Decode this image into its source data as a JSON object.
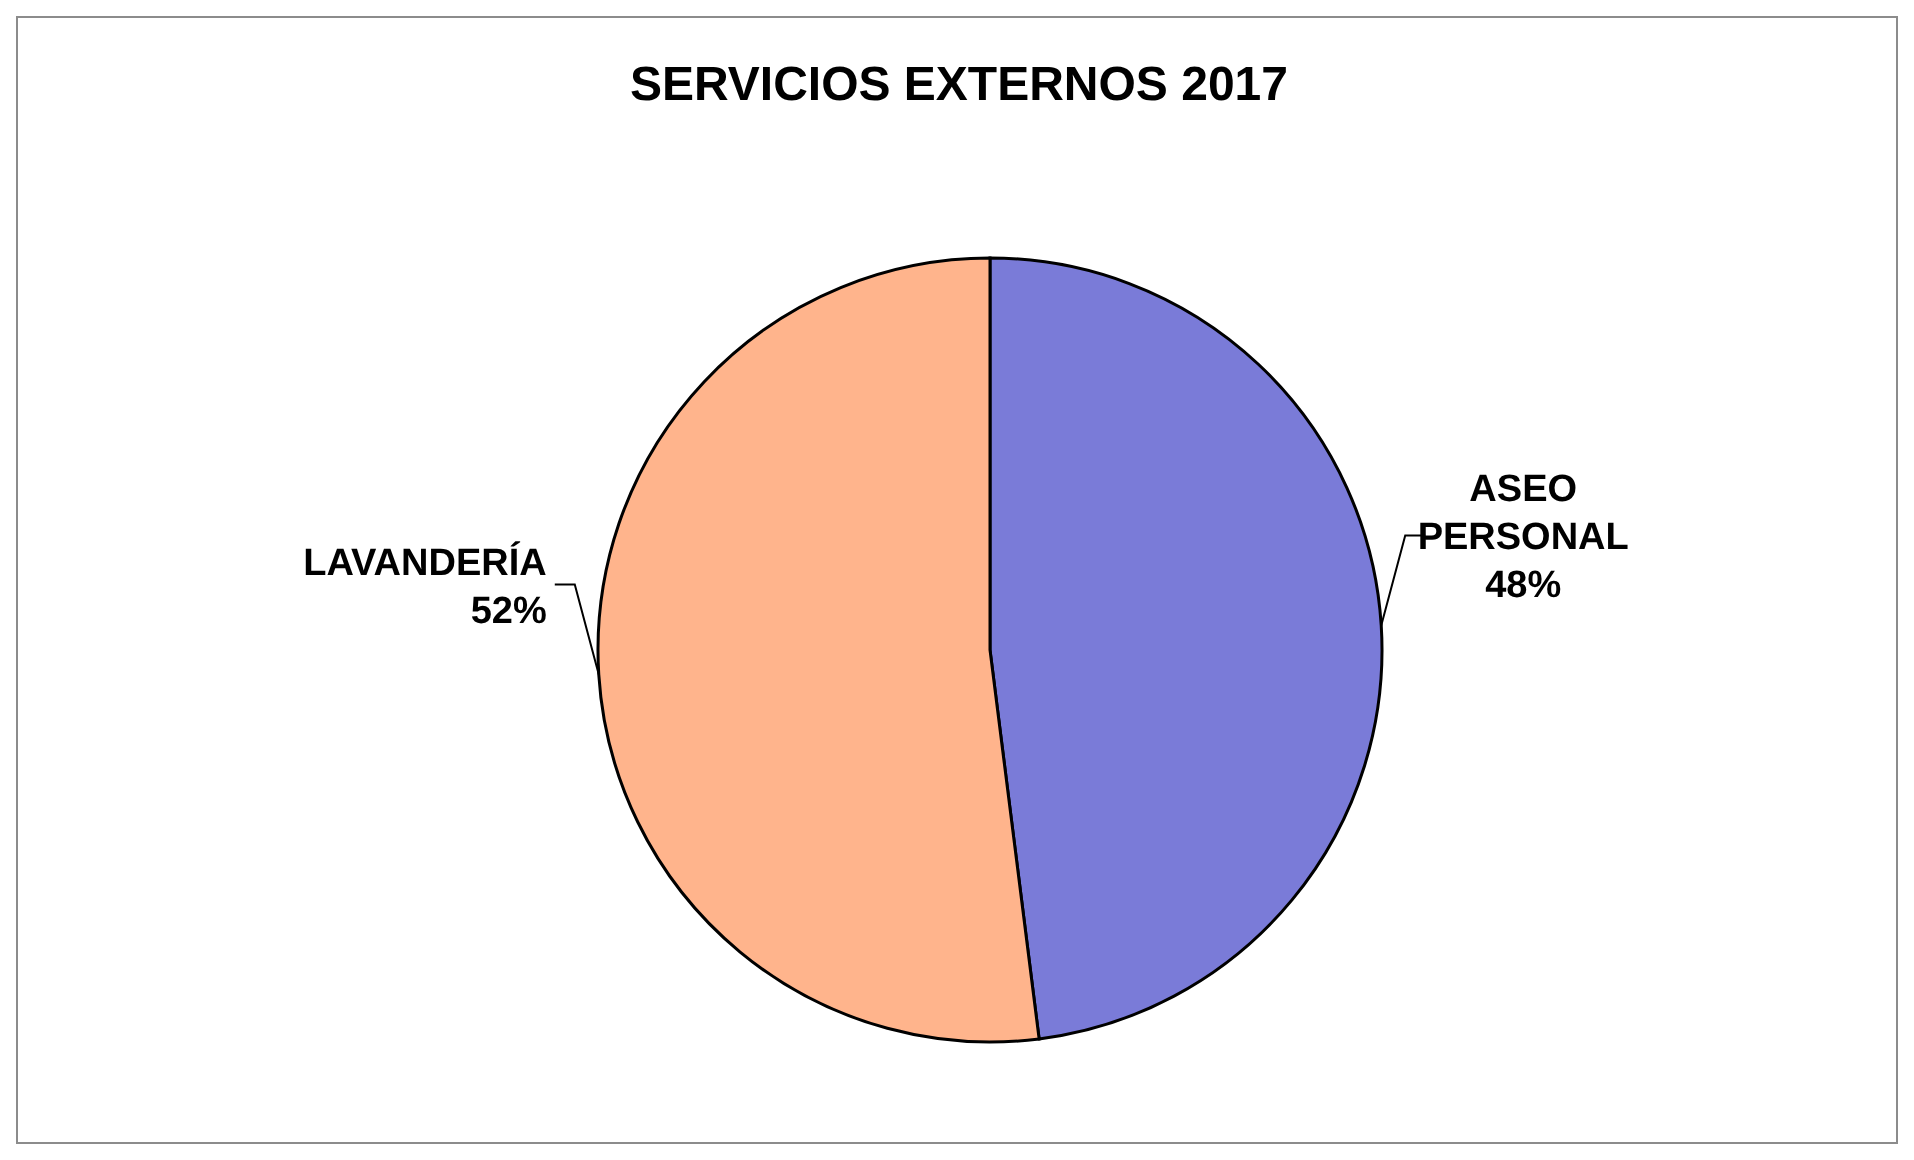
{
  "chart_data": {
    "type": "pie",
    "title": "SERVICIOS EXTERNOS 2017",
    "categories": [
      "ASEO PERSONAL",
      "LAVANDERÍA"
    ],
    "values": [
      48,
      52
    ],
    "value_labels": [
      "48%",
      "52%"
    ],
    "colors": [
      "#7a7bd8",
      "#ffb48c"
    ]
  }
}
